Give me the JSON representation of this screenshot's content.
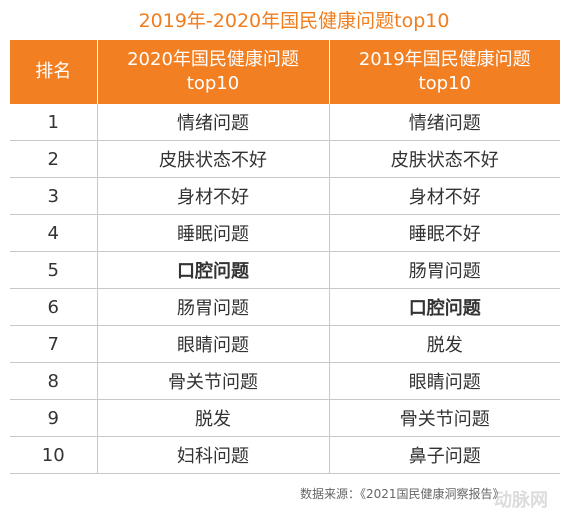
{
  "title": "2019年-2020年国民健康问题top10",
  "table": {
    "headers": {
      "rank": "排名",
      "col2020_line1": "2020年国民健康问题",
      "col2020_line2": "top10",
      "col2019_line1": "2019年国民健康问题",
      "col2019_line2": "top10"
    },
    "rows": [
      {
        "rank": "1",
        "y2020": "情绪问题",
        "y2019": "情绪问题"
      },
      {
        "rank": "2",
        "y2020": "皮肤状态不好",
        "y2019": "皮肤状态不好"
      },
      {
        "rank": "3",
        "y2020": "身材不好",
        "y2019": "身材不好"
      },
      {
        "rank": "4",
        "y2020": "睡眠问题",
        "y2019": "睡眠不好"
      },
      {
        "rank": "5",
        "y2020": "口腔问题",
        "y2019": "肠胃问题"
      },
      {
        "rank": "6",
        "y2020": "肠胃问题",
        "y2019": "口腔问题"
      },
      {
        "rank": "7",
        "y2020": "眼睛问题",
        "y2019": "脱发"
      },
      {
        "rank": "8",
        "y2020": "骨关节问题",
        "y2019": "眼睛问题"
      },
      {
        "rank": "9",
        "y2020": "脱发",
        "y2019": "骨关节问题"
      },
      {
        "rank": "10",
        "y2020": "妇科问题",
        "y2019": "鼻子问题"
      }
    ],
    "highlight_color": "#F07E1E",
    "header_color": "#F27F22"
  },
  "source": "数据来源：《2021国民健康洞察报告》",
  "watermark": "动脉网"
}
